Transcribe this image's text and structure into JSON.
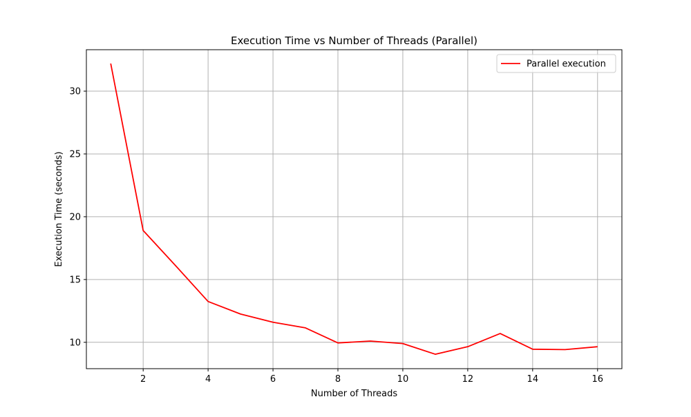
{
  "chart_data": {
    "type": "line",
    "title": "Execution Time vs Number of Threads (Parallel)",
    "xlabel": "Number of Threads",
    "ylabel": "Execution Time (seconds)",
    "xlim": [
      0.25,
      16.75
    ],
    "ylim": [
      7.9,
      33.3
    ],
    "xticks": [
      2,
      4,
      6,
      8,
      10,
      12,
      14,
      16
    ],
    "yticks": [
      10,
      15,
      20,
      25,
      30
    ],
    "grid": true,
    "legend_position": "top-right",
    "x": [
      1,
      2,
      3,
      4,
      5,
      6,
      7,
      8,
      9,
      10,
      11,
      12,
      13,
      14,
      15,
      16
    ],
    "series": [
      {
        "name": "Parallel execution",
        "color": "#ff0000",
        "values": [
          32.2,
          18.9,
          16.1,
          13.25,
          12.25,
          11.6,
          11.15,
          9.95,
          10.1,
          9.9,
          9.05,
          9.65,
          10.7,
          9.45,
          9.42,
          9.65
        ]
      }
    ]
  }
}
